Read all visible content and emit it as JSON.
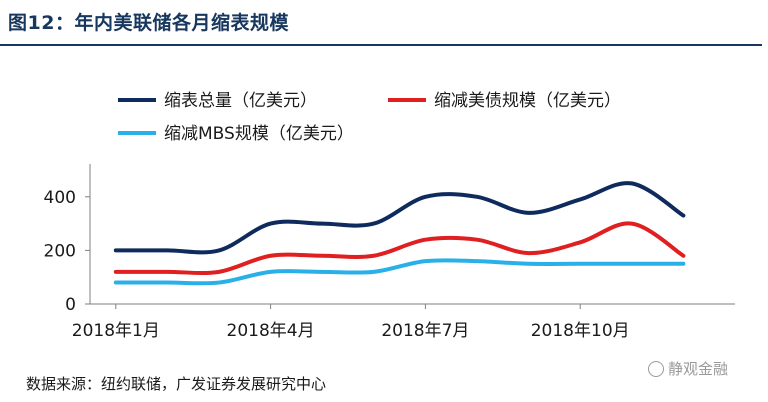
{
  "header": {
    "title": "图12：年内美联储各月缩表规模"
  },
  "chart_data": {
    "type": "line",
    "title": "图12：年内美联储各月缩表规模",
    "xlabel": "",
    "ylabel": "",
    "ylim": [
      0,
      500
    ],
    "yticks": [
      0,
      200,
      400
    ],
    "xtick_labels": [
      "2018年1月",
      "2018年4月",
      "2018年7月",
      "2018年10月"
    ],
    "xtick_positions": [
      1,
      4,
      7,
      10
    ],
    "x": [
      1,
      2,
      3,
      4,
      5,
      6,
      7,
      8,
      9,
      10,
      11,
      12
    ],
    "series": [
      {
        "name": "缩表总量（亿美元）",
        "color": "#0f2a5c",
        "values": [
          200,
          200,
          200,
          300,
          300,
          300,
          400,
          400,
          340,
          390,
          450,
          330
        ]
      },
      {
        "name": "缩减美债规模（亿美元）",
        "color": "#e02020",
        "values": [
          120,
          120,
          120,
          180,
          180,
          180,
          240,
          240,
          190,
          230,
          300,
          180
        ]
      },
      {
        "name": "缩减MBS规模（亿美元）",
        "color": "#2ab0e8",
        "values": [
          80,
          80,
          80,
          120,
          120,
          120,
          160,
          160,
          150,
          150,
          150,
          150
        ]
      }
    ],
    "legend_position": "top-left",
    "grid": false
  },
  "footer": {
    "source": "数据来源：纽约联储，广发证券发展研究中心",
    "watermark": "静观金融"
  }
}
